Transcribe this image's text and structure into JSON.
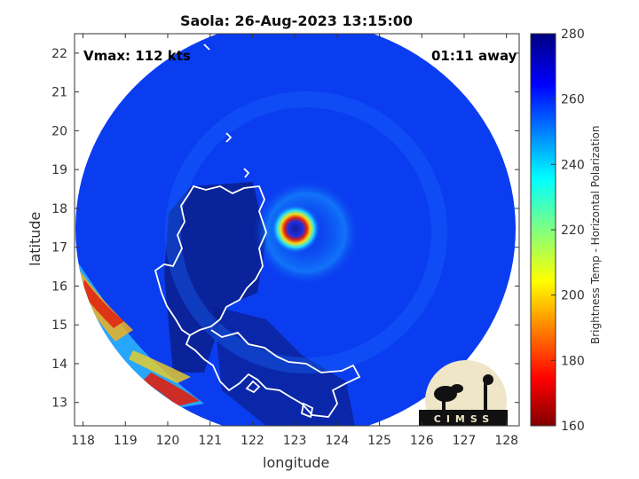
{
  "title": "Saola: 26-Aug-2023 13:15:00",
  "vmax_label": "Vmax: 112 kts",
  "time_label": "01:11 away",
  "xlabel": "longitude",
  "ylabel": "latitude",
  "colorbar_label": "Brightness Temp - Horizontal Polarization",
  "logo_text": "CIMSS",
  "x_ticks": [
    "118",
    "119",
    "120",
    "121",
    "122",
    "123",
    "124",
    "125",
    "126",
    "127",
    "128"
  ],
  "y_ticks": [
    "22",
    "21",
    "20",
    "19",
    "18",
    "17",
    "16",
    "15",
    "14",
    "13"
  ],
  "colorbar_ticks": [
    "280",
    "260",
    "240",
    "220",
    "200",
    "180",
    "160"
  ],
  "map": {
    "xlim": [
      117.8,
      128.3
    ],
    "ylim": [
      12.4,
      22.5
    ],
    "storm_center": {
      "lon": 123.0,
      "lat": 17.5
    },
    "colorbar_range": [
      160,
      280
    ]
  },
  "colors": {
    "background_blue": "#0b3df0",
    "deep_blue": "#0a1e8c",
    "cyan": "#14c8ff",
    "red": "#d42010",
    "yellow": "#f0e020",
    "coast": "#ffffff"
  }
}
